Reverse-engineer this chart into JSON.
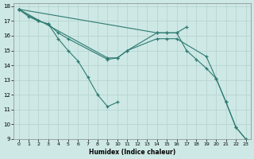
{
  "xlabel": "Humidex (Indice chaleur)",
  "background_color": "#cde8e5",
  "grid_color": "#b8d5d2",
  "line_color": "#2d7a70",
  "xlim": [
    -0.5,
    23.5
  ],
  "ylim": [
    9,
    18.2
  ],
  "xticks": [
    0,
    1,
    2,
    3,
    4,
    5,
    6,
    7,
    8,
    9,
    10,
    11,
    12,
    13,
    14,
    15,
    16,
    17,
    18,
    19,
    20,
    21,
    22,
    23
  ],
  "yticks": [
    9,
    10,
    11,
    12,
    13,
    14,
    15,
    16,
    17,
    18
  ],
  "series1_x": [
    0,
    1,
    2,
    3,
    4,
    5,
    6,
    7,
    8,
    9,
    10
  ],
  "series1_y": [
    17.8,
    17.3,
    17.0,
    16.8,
    15.8,
    15.0,
    14.3,
    13.2,
    12.0,
    11.2,
    11.5
  ],
  "series2_x": [
    0,
    2,
    3,
    4,
    5,
    9,
    10,
    11,
    14,
    15,
    16,
    17
  ],
  "series2_y": [
    17.8,
    17.0,
    16.8,
    16.2,
    15.8,
    14.4,
    14.5,
    15.0,
    16.2,
    16.2,
    16.2,
    16.6
  ],
  "series3_x": [
    0,
    14,
    15,
    16,
    17,
    18,
    19,
    20,
    21,
    22,
    23
  ],
  "series3_y": [
    17.8,
    16.2,
    16.2,
    16.2,
    15.0,
    14.4,
    13.8,
    13.1,
    11.5,
    9.8,
    9.0
  ],
  "series4_x": [
    0,
    9,
    10,
    11,
    14,
    15,
    16,
    19,
    20,
    21,
    22,
    23
  ],
  "series4_y": [
    17.8,
    14.5,
    14.5,
    15.0,
    15.8,
    15.8,
    15.8,
    14.6,
    13.1,
    11.5,
    9.8,
    9.0
  ]
}
